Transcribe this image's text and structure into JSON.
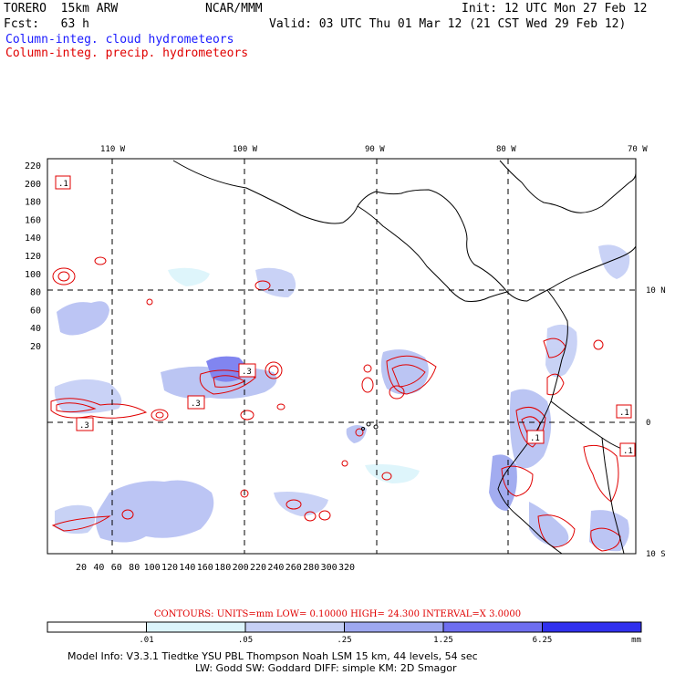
{
  "header": {
    "model": "TORERO  15km ARW",
    "center": "NCAR/MMM",
    "init": "Init: 12 UTC Mon 27 Feb 12",
    "fcst": "Fcst:   63 h",
    "valid": "Valid: 03 UTC Thu 01 Mar 12 (21 CST Wed 29 Feb 12)",
    "legend_cloud": "Column-integ. cloud hydrometeors",
    "legend_precip": "Column-integ. precip. hydrometeors"
  },
  "map": {
    "lon_labels": [
      "110 W",
      "100 W",
      "90 W",
      "80 W",
      "70 W"
    ],
    "lat_labels": [
      "10 N",
      "0",
      "10 S"
    ],
    "y_ticks": [
      "220",
      "200",
      "180",
      "160",
      "140",
      "120",
      "100",
      "80",
      "60",
      "40",
      "20"
    ],
    "x_ticks": [
      "20",
      "40",
      "60",
      "80",
      "100",
      "120",
      "140",
      "160",
      "180",
      "200",
      "220",
      "240",
      "260",
      "280",
      "300",
      "320"
    ],
    "box_labels": [
      ".1",
      ".3",
      ".3",
      ".3",
      ".1",
      ".1",
      ".1"
    ],
    "colors": {
      "precip": "#e00000",
      "coast": "#000000",
      "grid": "#000000"
    }
  },
  "contours_text": {
    "units": "CONTOURS:  UNITS=mm  LOW= 0.10000      HIGH=  24.300      INTERVAL=X  3.0000"
  },
  "colorbar": {
    "labels": [
      ".01",
      ".05",
      ".25",
      "1.25",
      "6.25"
    ],
    "unit": "mm",
    "colors": [
      "#ffffff",
      "#dcf4fb",
      "#c6d0f5",
      "#9ea8f0",
      "#6e6ef0",
      "#3030ee"
    ]
  },
  "footer": {
    "line1": "Model Info: V3.3.1    Tiedtke YSU PBL   Thompson     Noah LSM  15 km,   44 levels,   54 sec",
    "line2": "LW: Godd SW: Goddard DIFF: simple KM: 2D Smagor"
  }
}
